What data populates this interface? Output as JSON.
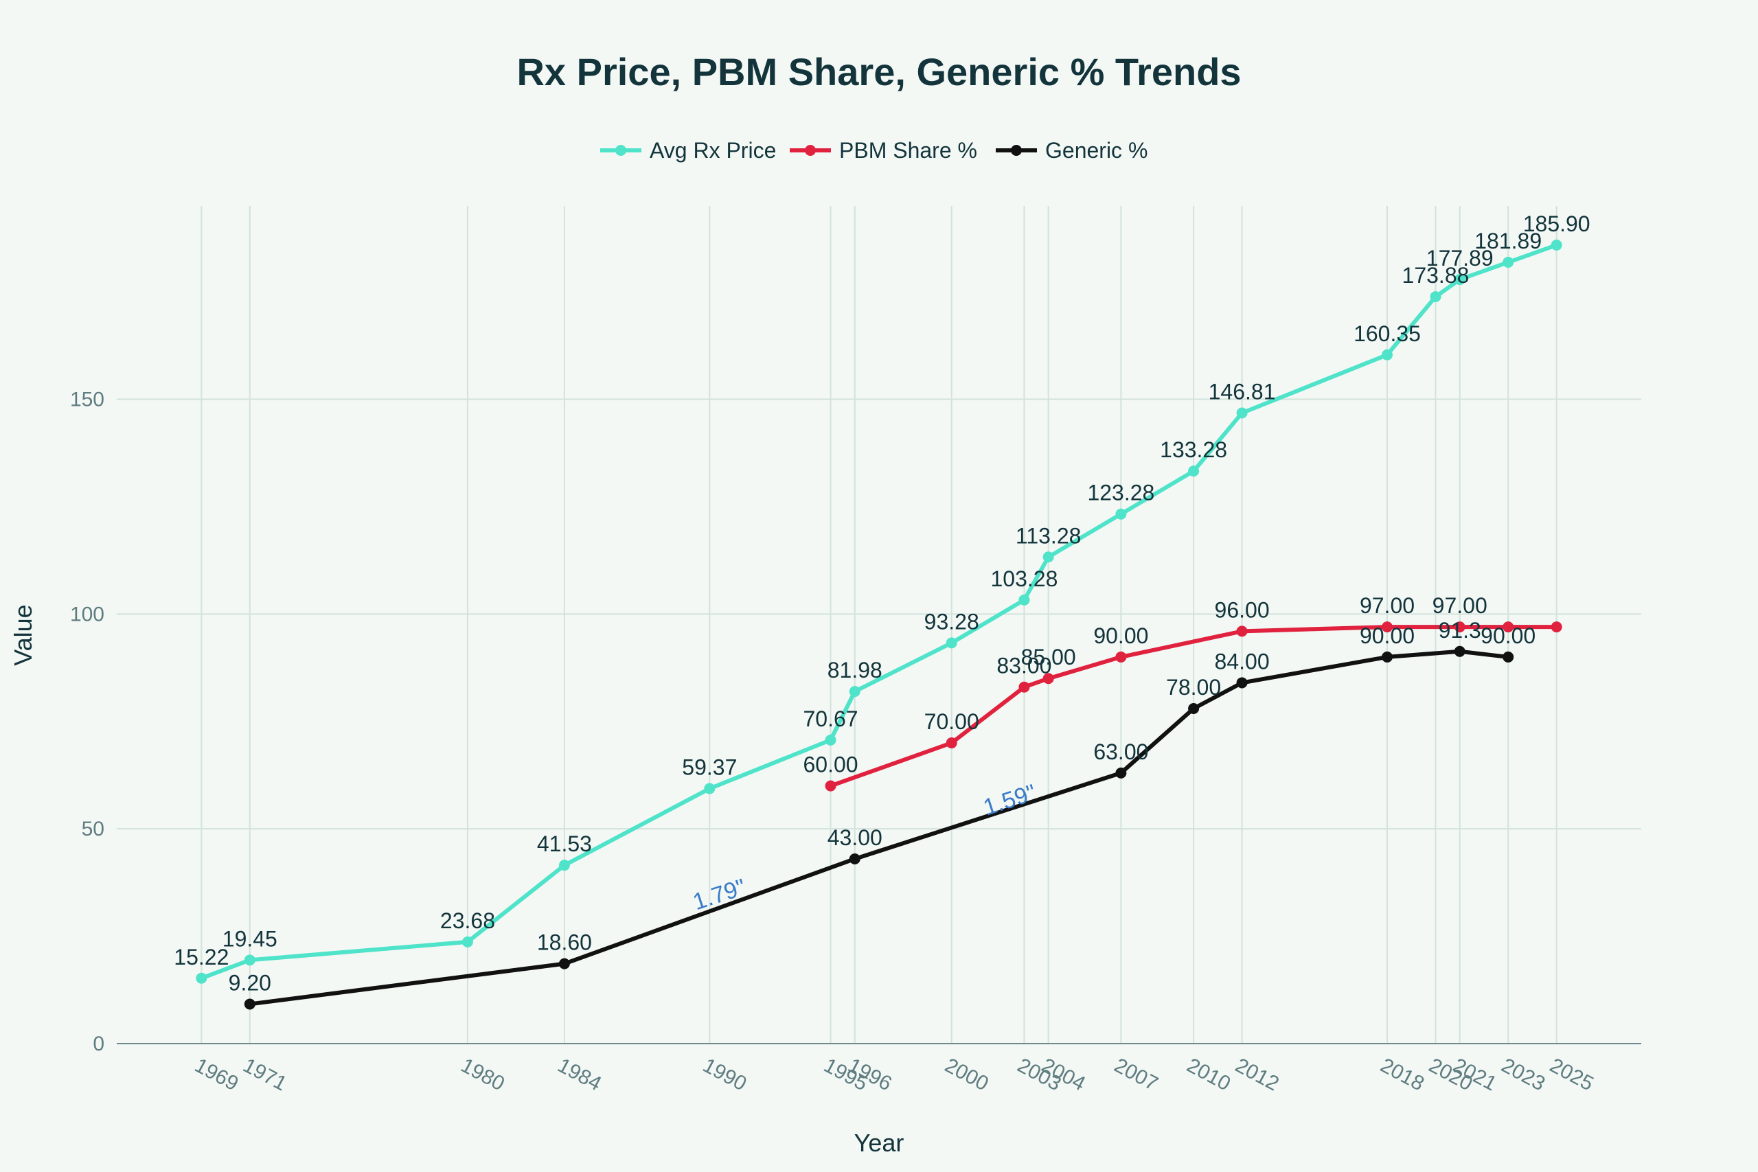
{
  "chart_data": {
    "type": "line",
    "title": "Rx Price, PBM Share, Generic % Trends",
    "xlabel": "Year",
    "ylabel": "Value",
    "ylim": [
      0,
      195
    ],
    "yticks": [
      0,
      50,
      100,
      150
    ],
    "xlim": [
      1965.5,
      2028.5
    ],
    "xticks": [
      1969,
      1971,
      1980,
      1984,
      1990,
      1995,
      1996,
      2000,
      2003,
      2004,
      2007,
      2010,
      2012,
      2018,
      2020,
      2021,
      2023,
      2025
    ],
    "grid": true,
    "legend_position": "top-center",
    "series": [
      {
        "name": "Avg Rx Price",
        "color": "#4fe3c9",
        "x": [
          1969,
          1971,
          1980,
          1984,
          1990,
          1995,
          1996,
          2000,
          2003,
          2004,
          2007,
          2010,
          2012,
          2018,
          2020,
          2021,
          2023,
          2025
        ],
        "y": [
          15.22,
          19.45,
          23.68,
          41.53,
          59.37,
          70.67,
          81.98,
          93.28,
          103.28,
          113.28,
          123.28,
          133.28,
          146.81,
          160.35,
          173.88,
          177.89,
          181.89,
          185.9
        ],
        "labels": [
          "15.22",
          "19.45",
          "23.68",
          "41.53",
          "59.37",
          "70.67",
          "81.98",
          "93.28",
          "103.28",
          "113.28",
          "123.28",
          "133.28",
          "146.81",
          "160.35",
          "173.88",
          "177.89",
          "181.89",
          "185.90"
        ]
      },
      {
        "name": "PBM Share %",
        "color": "#e0223f",
        "x": [
          1995,
          2000,
          2003,
          2004,
          2007,
          2012,
          2018,
          2021,
          2023,
          2025
        ],
        "y": [
          60,
          70,
          83,
          85,
          90,
          96,
          97,
          97,
          97,
          97
        ],
        "labels": [
          "60.00",
          "70.00",
          "83.00",
          "85.00",
          "90.00",
          "96.00",
          "97.00",
          "97.00",
          "",
          ""
        ]
      },
      {
        "name": "Generic %",
        "color": "#111111",
        "x": [
          1971,
          1984,
          1996,
          2007,
          2010,
          2012,
          2018,
          2021,
          2023
        ],
        "y": [
          9.2,
          18.6,
          43.0,
          63.0,
          78.0,
          84.0,
          90.0,
          91.3,
          90.0
        ],
        "labels": [
          "9.20",
          "18.60",
          "43.00",
          "63.00",
          "78.00",
          "84.00",
          "90.00",
          "91.3",
          "90.00"
        ]
      }
    ],
    "annotations": [
      {
        "text": "1.79\"",
        "x": 1990.5,
        "y": 33
      },
      {
        "text": "1.59\"",
        "x": 2002.5,
        "y": 55
      }
    ]
  }
}
